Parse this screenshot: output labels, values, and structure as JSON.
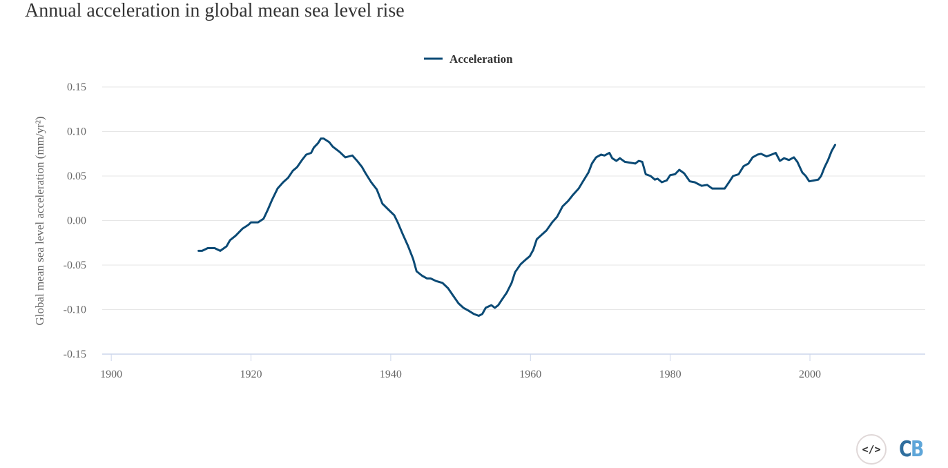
{
  "title": "Annual acceleration in global mean sea level rise",
  "logo": {
    "embed_icon": "code-embed-icon",
    "embed_text": "</>",
    "brand_c": "C",
    "brand_b": "B"
  },
  "colors": {
    "line": "#0b4a75",
    "grid": "#e6e6e6",
    "axis": "#ccd6eb"
  },
  "chart_data": {
    "type": "line",
    "title": "Annual acceleration in global mean sea level rise",
    "xlabel": "",
    "ylabel": "Global mean sea level acceleration (mm/yr²)",
    "xlim": [
      1898.7,
      2016.5
    ],
    "ylim": [
      -0.15,
      0.15
    ],
    "x_ticks": [
      1900,
      1920,
      1940,
      1960,
      1980,
      2000
    ],
    "x_tick_labels": [
      "1900",
      "1920",
      "1940",
      "1960",
      "1980",
      "2000"
    ],
    "y_ticks": [
      0.15,
      0.1,
      0.05,
      0.0,
      -0.05,
      -0.1,
      -0.15
    ],
    "y_tick_labels": [
      "0.15",
      "0.10",
      "0.05",
      "0.00",
      "-0.05",
      "-0.10",
      "-0.15"
    ],
    "grid": true,
    "legend": {
      "position": "top-center",
      "entries": [
        "Acceleration"
      ]
    },
    "series": [
      {
        "name": "Acceleration",
        "x": [
          1912.5,
          1913.0,
          1913.8,
          1914.8,
          1915.6,
          1916.5,
          1917.0,
          1917.8,
          1918.8,
          1919.6,
          1920.0,
          1921.0,
          1921.8,
          1922.4,
          1923.0,
          1923.8,
          1924.6,
          1925.3,
          1926.0,
          1926.6,
          1927.3,
          1927.9,
          1928.6,
          1929.0,
          1929.6,
          1930.0,
          1930.4,
          1931.2,
          1931.7,
          1932.7,
          1933.5,
          1934.5,
          1935.2,
          1935.9,
          1936.4,
          1937.2,
          1938.0,
          1938.8,
          1939.7,
          1940.5,
          1941.0,
          1941.7,
          1942.5,
          1943.2,
          1943.7,
          1944.5,
          1945.2,
          1945.7,
          1946.5,
          1947.4,
          1948.2,
          1948.9,
          1949.7,
          1950.4,
          1951.1,
          1951.9,
          1952.6,
          1953.1,
          1953.6,
          1954.4,
          1954.9,
          1955.4,
          1955.9,
          1956.6,
          1957.3,
          1957.8,
          1958.6,
          1959.3,
          1959.9,
          1960.4,
          1960.9,
          1961.6,
          1962.3,
          1963.1,
          1963.8,
          1964.6,
          1965.4,
          1966.1,
          1966.9,
          1967.6,
          1968.3,
          1968.8,
          1969.4,
          1970.1,
          1970.6,
          1971.3,
          1971.7,
          1972.3,
          1972.8,
          1973.5,
          1974.2,
          1975.0,
          1975.5,
          1976.0,
          1976.5,
          1977.2,
          1977.8,
          1978.2,
          1978.8,
          1979.5,
          1980.0,
          1980.7,
          1981.3,
          1982.0,
          1982.8,
          1983.5,
          1984.5,
          1985.3,
          1986.0,
          1987.0,
          1987.8,
          1988.5,
          1989.0,
          1989.8,
          1990.5,
          1991.2,
          1991.8,
          1992.5,
          1993.0,
          1993.8,
          1994.5,
          1995.1,
          1995.7,
          1996.3,
          1997.0,
          1997.7,
          1998.2,
          1998.9,
          1999.4,
          1999.9,
          2000.6,
          2001.2,
          2001.6,
          2002.1,
          2002.6,
          2003.1,
          2003.6
        ],
        "y": [
          -0.034,
          -0.034,
          -0.031,
          -0.031,
          -0.034,
          -0.029,
          -0.022,
          -0.017,
          -0.009,
          -0.005,
          -0.002,
          -0.002,
          0.002,
          0.012,
          0.023,
          0.036,
          0.043,
          0.048,
          0.056,
          0.06,
          0.068,
          0.074,
          0.076,
          0.082,
          0.087,
          0.092,
          0.092,
          0.088,
          0.083,
          0.077,
          0.071,
          0.073,
          0.067,
          0.06,
          0.053,
          0.043,
          0.035,
          0.019,
          0.012,
          0.006,
          -0.002,
          -0.015,
          -0.029,
          -0.043,
          -0.057,
          -0.062,
          -0.065,
          -0.065,
          -0.068,
          -0.07,
          -0.076,
          -0.084,
          -0.093,
          -0.098,
          -0.101,
          -0.105,
          -0.107,
          -0.105,
          -0.098,
          -0.095,
          -0.098,
          -0.095,
          -0.089,
          -0.081,
          -0.07,
          -0.058,
          -0.049,
          -0.044,
          -0.04,
          -0.033,
          -0.021,
          -0.016,
          -0.011,
          -0.002,
          0.004,
          0.016,
          0.022,
          0.029,
          0.036,
          0.045,
          0.054,
          0.064,
          0.071,
          0.074,
          0.073,
          0.076,
          0.07,
          0.067,
          0.07,
          0.066,
          0.065,
          0.064,
          0.067,
          0.066,
          0.052,
          0.05,
          0.046,
          0.047,
          0.043,
          0.045,
          0.051,
          0.052,
          0.057,
          0.053,
          0.044,
          0.043,
          0.039,
          0.04,
          0.036,
          0.036,
          0.036,
          0.044,
          0.05,
          0.052,
          0.061,
          0.064,
          0.071,
          0.074,
          0.075,
          0.072,
          0.074,
          0.076,
          0.067,
          0.07,
          0.068,
          0.071,
          0.066,
          0.054,
          0.05,
          0.044,
          0.045,
          0.046,
          0.05,
          0.06,
          0.068,
          0.078,
          0.085
        ]
      }
    ]
  }
}
